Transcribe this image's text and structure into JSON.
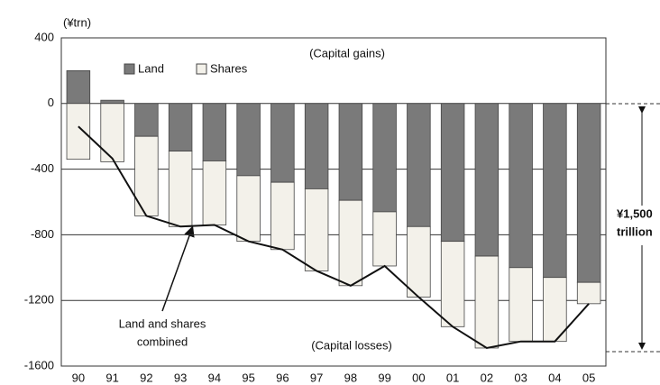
{
  "chart_data": {
    "type": "bar",
    "unit_label": "(¥trn)",
    "categories": [
      "90",
      "91",
      "92",
      "93",
      "94",
      "95",
      "96",
      "97",
      "98",
      "99",
      "00",
      "01",
      "02",
      "03",
      "04",
      "05"
    ],
    "series": [
      {
        "name": "Land",
        "color": "#7a7a7a",
        "values": [
          200,
          20,
          -200,
          -290,
          -350,
          -440,
          -480,
          -520,
          -590,
          -660,
          -750,
          -840,
          -930,
          -1000,
          -1060,
          -1090
        ]
      },
      {
        "name": "Shares",
        "color": "#f3f1ea",
        "values": [
          -340,
          -355,
          -485,
          -460,
          -390,
          -400,
          -410,
          -500,
          -520,
          -330,
          -430,
          -520,
          -560,
          -450,
          -390,
          -130
        ]
      }
    ],
    "combined": {
      "color": "#111111",
      "values": [
        -140,
        -335,
        -685,
        -750,
        -740,
        -840,
        -890,
        -1020,
        -1110,
        -990,
        -1180,
        -1360,
        -1490,
        -1450,
        -1450,
        -1220
      ]
    },
    "ylim": [
      -1600,
      400
    ],
    "yticks": [
      -1600,
      -1200,
      -800,
      -400,
      0,
      400
    ],
    "grid": true,
    "annotations": {
      "gains": "(Capital gains)",
      "losses": "(Capital losses)",
      "combined_line1": "Land and shares",
      "combined_line2": "combined",
      "bracket_line1": "¥1,500",
      "bracket_line2": "trillion"
    }
  }
}
